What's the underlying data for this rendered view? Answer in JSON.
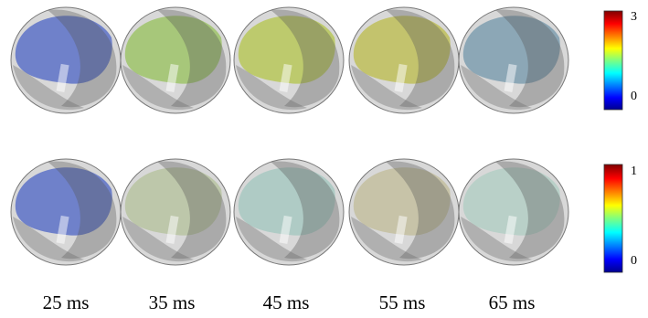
{
  "colorbars": [
    {
      "max": 3,
      "min": 0
    },
    {
      "max": 1,
      "min": 0
    }
  ],
  "times": [
    "25 ms",
    "35 ms",
    "45 ms",
    "55 ms",
    "65 ms"
  ]
}
